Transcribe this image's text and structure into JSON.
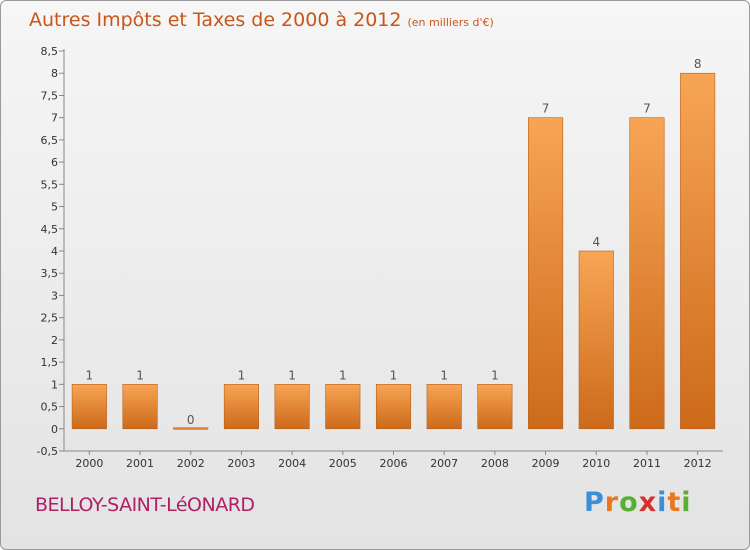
{
  "title": "Autres Impôts et Taxes de 2000 à 2012",
  "subtitle": "(en milliers d'€)",
  "place_name": "BELLOY-SAINT-LéONARD",
  "logo": {
    "letters": [
      "P",
      "r",
      "o",
      "x",
      "i",
      "t",
      "i"
    ],
    "colors": [
      "#3a8fd8",
      "#e87820",
      "#58b030",
      "#d83030",
      "#3a8fd8",
      "#e87820",
      "#58b030"
    ]
  },
  "colors": {
    "bar_top": "#f7a555",
    "bar_bottom": "#cc6a1a",
    "bar_edge": "#b8601a",
    "title": "#c8561a",
    "place": "#b01f64"
  },
  "chart_data": {
    "type": "bar",
    "title": "Autres Impôts et Taxes de 2000 à 2012",
    "subtitle": "(en milliers d'€)",
    "categories": [
      "2000",
      "2001",
      "2002",
      "2003",
      "2004",
      "2005",
      "2006",
      "2007",
      "2008",
      "2009",
      "2010",
      "2011",
      "2012"
    ],
    "values": [
      1,
      1,
      0,
      1,
      1,
      1,
      1,
      1,
      1,
      7,
      4,
      7,
      8
    ],
    "data_labels": [
      "1",
      "1",
      "0",
      "1",
      "1",
      "1",
      "1",
      "1",
      "1",
      "7",
      "4",
      "7",
      "8"
    ],
    "ylim": [
      -0.5,
      8.5
    ],
    "yticks": [
      -0.5,
      0,
      0.5,
      1,
      1.5,
      2,
      2.5,
      3,
      3.5,
      4,
      4.5,
      5,
      5.5,
      6,
      6.5,
      7,
      7.5,
      8,
      8.5
    ],
    "ytick_labels": [
      "-0,5",
      "0",
      "0,5",
      "1",
      "1,5",
      "2",
      "2,5",
      "3",
      "3,5",
      "4",
      "4,5",
      "5",
      "5,5",
      "6",
      "6,5",
      "7",
      "7,5",
      "8",
      "8,5"
    ],
    "grid": false,
    "xlabel": "",
    "ylabel": ""
  }
}
